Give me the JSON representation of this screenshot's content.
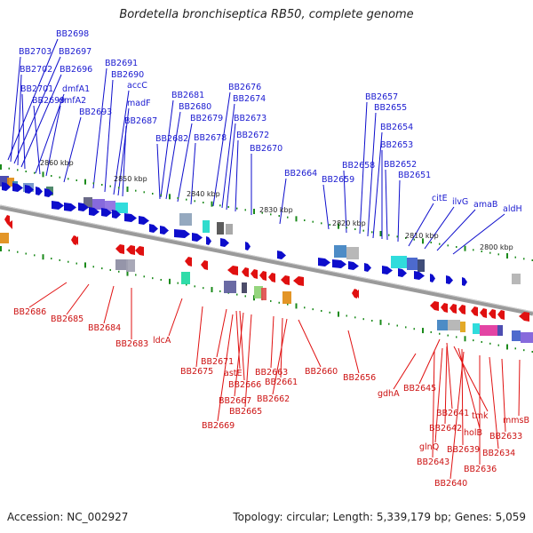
{
  "title": "Bordetella bronchiseptica RB50, complete genome",
  "footer": {
    "accession": "Accession: NC_002927",
    "summary": "Topology: circular; Length: 5,339,179 bp; Genes: 5,059"
  },
  "colors": {
    "forward_strand": "#0d0dcc",
    "reverse_strand": "#e01010",
    "backbone": "#888888",
    "tick": "#1a8a1a"
  },
  "scale_ticks": [
    "2860 kbp",
    "2850 kbp",
    "2840 kbp",
    "2830 kbp",
    "2820 kbp",
    "2810 kbp",
    "2800 kbp"
  ],
  "forward_genes": [
    "BB2698",
    "BB2703",
    "BB2697",
    "BB2702",
    "BB2696",
    "BB2701",
    "dmfA1",
    "BB2699",
    "dmfA2",
    "BB2693",
    "BB2691",
    "BB2690",
    "accC",
    "madF",
    "BB2687",
    "BB2681",
    "BB2676",
    "BB2680",
    "BB2674",
    "BB2679",
    "BB2673",
    "BB2682",
    "BB2678",
    "BB2672",
    "BB2670",
    "BB2664",
    "BB2659",
    "BB2658",
    "BB2657",
    "BB2655",
    "BB2654",
    "BB2653",
    "BB2652",
    "BB2651",
    "citE",
    "ilvG",
    "amaB",
    "aldH"
  ],
  "reverse_genes": [
    "BB2686",
    "BB2685",
    "BB2684",
    "BB2683",
    "ldcA",
    "BB2675",
    "BB2671",
    "astE",
    "BB2666",
    "BB2667",
    "BB2665",
    "BB2669",
    "BB2663",
    "BB2661",
    "BB2662",
    "BB2660",
    "BB2656",
    "gdhA",
    "BB2645",
    "BB2641",
    "tmk",
    "BB2642",
    "holB",
    "glnQ",
    "BB2639",
    "BB2643",
    "BB2640",
    "BB2636",
    "BB2634",
    "BB2633",
    "mmsB"
  ]
}
